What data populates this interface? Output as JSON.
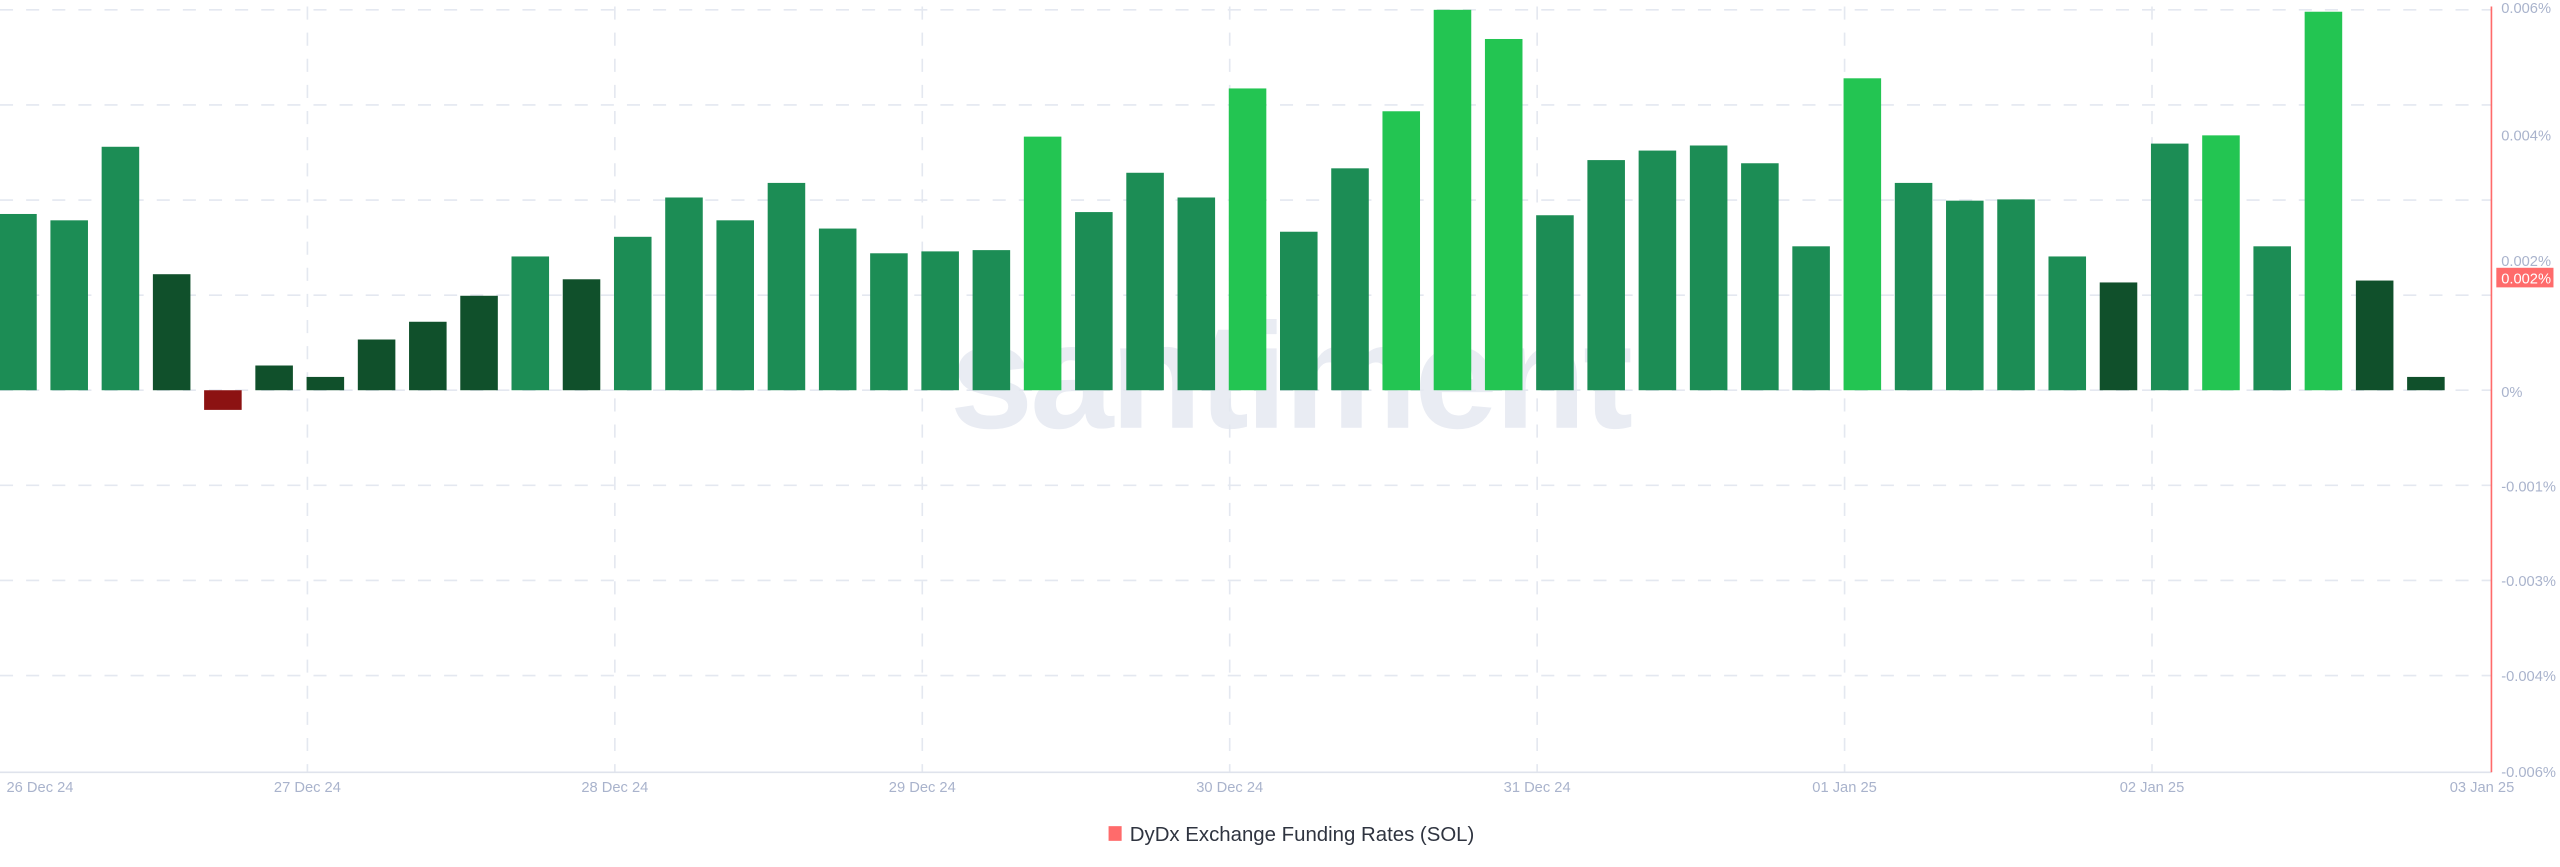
{
  "chart_data": {
    "type": "bar",
    "title": "",
    "xlabel": "",
    "ylabel": "",
    "watermark": "santiment",
    "x_tick_labels": [
      "26 Dec 24",
      "27 Dec 24",
      "28 Dec 24",
      "29 Dec 24",
      "30 Dec 24",
      "31 Dec 24",
      "01 Jan 25",
      "02 Jan 25",
      "03 Jan 25"
    ],
    "y_tick_labels": [
      "0.006%",
      "0.004%",
      "0.002%",
      "0%",
      "-0.001%",
      "-0.003%",
      "-0.004%",
      "-0.006%"
    ],
    "ylim": [
      -0.006,
      0.006
    ],
    "y_unit": "%",
    "grid": true,
    "legend_position": "bottom-center",
    "series": [
      {
        "name": "DyDx Exchange Funding Rates (SOL)",
        "color": "#ff6b6b",
        "values": [
          0.00278,
          0.00268,
          0.00384,
          0.00183,
          -0.00031,
          0.00039,
          0.00021,
          0.0008,
          0.00108,
          0.00149,
          0.00211,
          0.00175,
          0.00242,
          0.00304,
          0.00268,
          0.00327,
          0.00255,
          0.00216,
          0.00219,
          0.00221,
          0.004,
          0.00281,
          0.00343,
          0.00304,
          0.00476,
          0.0025,
          0.0035,
          0.0044,
          0.006,
          0.00554,
          0.00276,
          0.00363,
          0.00378,
          0.00386,
          0.00358,
          0.00227,
          0.00492,
          0.00327,
          0.00299,
          0.00301,
          0.00211,
          0.0017,
          0.00389,
          0.00402,
          0.00227,
          0.00597,
          0.00173,
          0.00021
        ]
      }
    ],
    "bar_colors": {
      "negative": "#8c1212",
      "low": "#10502b",
      "mid": "#1c8d55",
      "high": "#23c552"
    },
    "current_value_label": "0.002%",
    "current_value_color": "#ff6b6b"
  }
}
